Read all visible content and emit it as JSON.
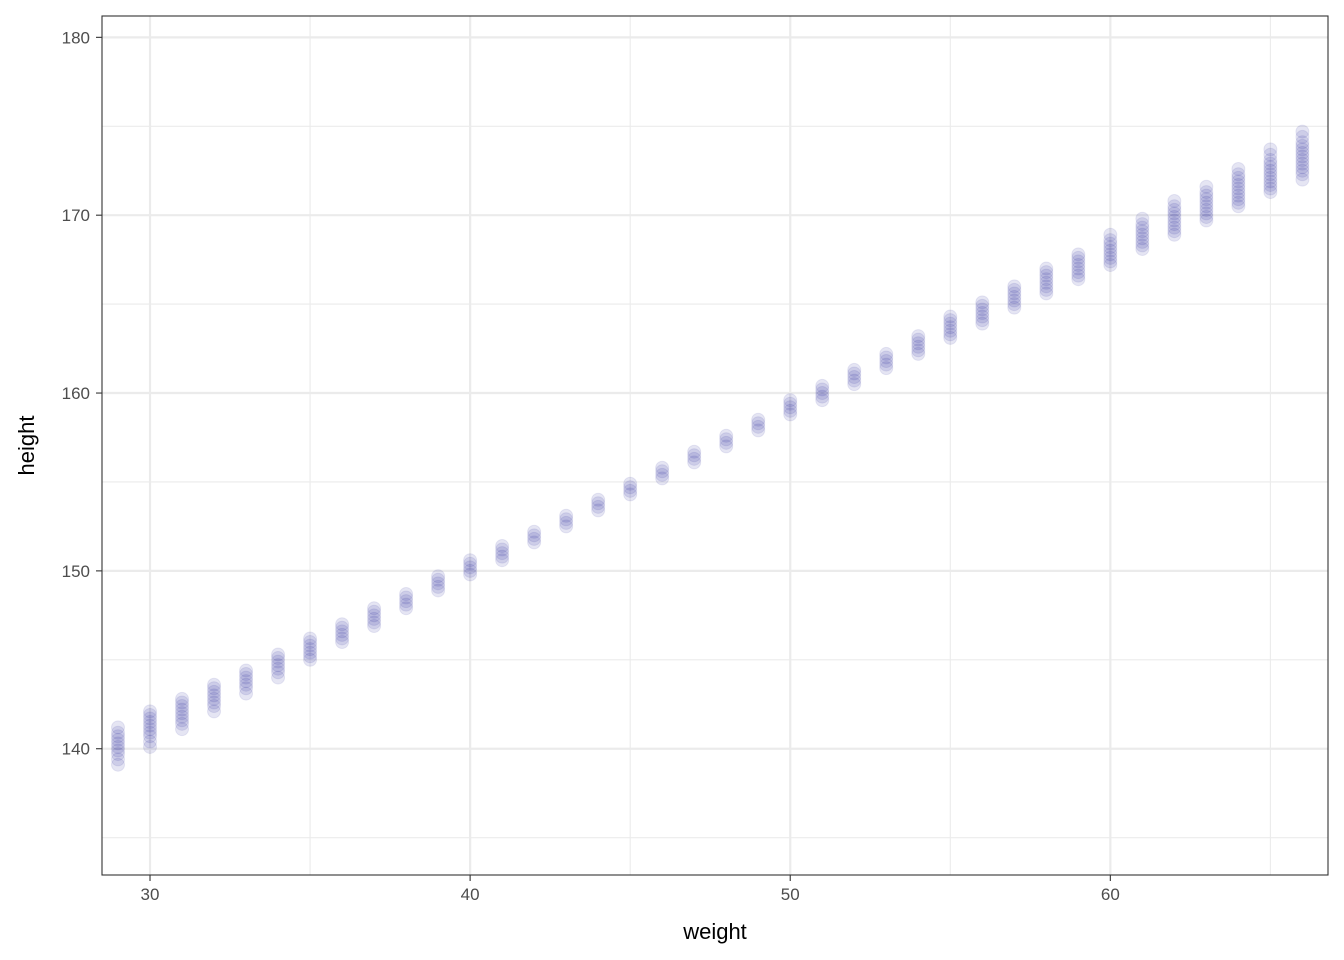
{
  "chart_data": {
    "type": "scatter",
    "title": "",
    "xlabel": "weight",
    "ylabel": "height",
    "xlim": [
      28.5,
      66.8
    ],
    "ylim": [
      132.9,
      181.2
    ],
    "x_ticks": [
      30,
      40,
      50,
      60
    ],
    "y_ticks": [
      140,
      150,
      160,
      170,
      180
    ],
    "x_ticks_minor": [
      35,
      45,
      55,
      65
    ],
    "y_ticks_minor": [
      135,
      145,
      155,
      165,
      175
    ],
    "grid": true,
    "point_color": "#00008B",
    "point_opacity": 0.1,
    "x_values": [
      29,
      30,
      31,
      32,
      33,
      34,
      35,
      36,
      37,
      38,
      39,
      40,
      41,
      42,
      43,
      44,
      45,
      46,
      47,
      48,
      49,
      50,
      51,
      52,
      53,
      54,
      55,
      56,
      57,
      58,
      59,
      60,
      61,
      62,
      63,
      64,
      65,
      66
    ],
    "point_clusters": [
      {
        "x": 29,
        "y": [
          139.1,
          139.4,
          139.7,
          139.9,
          140.1,
          140.3,
          140.5,
          140.7,
          140.9,
          141.2
        ]
      },
      {
        "x": 30,
        "y": [
          140.1,
          140.4,
          140.7,
          140.9,
          141.1,
          141.3,
          141.5,
          141.7,
          141.9,
          142.1
        ]
      },
      {
        "x": 31,
        "y": [
          141.1,
          141.4,
          141.6,
          141.8,
          142.0,
          142.2,
          142.4,
          142.6,
          142.8
        ]
      },
      {
        "x": 32,
        "y": [
          142.1,
          142.4,
          142.6,
          142.8,
          143.0,
          143.2,
          143.4,
          143.6
        ]
      },
      {
        "x": 33,
        "y": [
          143.1,
          143.4,
          143.6,
          143.8,
          144.0,
          144.2,
          144.4
        ]
      },
      {
        "x": 34,
        "y": [
          144.0,
          144.3,
          144.5,
          144.7,
          144.9,
          145.1,
          145.3
        ]
      },
      {
        "x": 35,
        "y": [
          145.0,
          145.2,
          145.4,
          145.6,
          145.8,
          146.0,
          146.2
        ]
      },
      {
        "x": 36,
        "y": [
          146.0,
          146.2,
          146.4,
          146.6,
          146.8,
          147.0
        ]
      },
      {
        "x": 37,
        "y": [
          146.9,
          147.1,
          147.3,
          147.5,
          147.7,
          147.9
        ]
      },
      {
        "x": 38,
        "y": [
          147.9,
          148.1,
          148.3,
          148.5,
          148.7
        ]
      },
      {
        "x": 39,
        "y": [
          148.9,
          149.1,
          149.3,
          149.5,
          149.7
        ]
      },
      {
        "x": 40,
        "y": [
          149.8,
          150.0,
          150.2,
          150.4,
          150.6
        ]
      },
      {
        "x": 41,
        "y": [
          150.6,
          150.8,
          151.0,
          151.2,
          151.4
        ]
      },
      {
        "x": 42,
        "y": [
          151.6,
          151.8,
          152.0,
          152.2
        ]
      },
      {
        "x": 43,
        "y": [
          152.5,
          152.7,
          152.9,
          153.1
        ]
      },
      {
        "x": 44,
        "y": [
          153.4,
          153.6,
          153.8,
          154.0
        ]
      },
      {
        "x": 45,
        "y": [
          154.3,
          154.5,
          154.7,
          154.9
        ]
      },
      {
        "x": 46,
        "y": [
          155.2,
          155.4,
          155.6,
          155.8
        ]
      },
      {
        "x": 47,
        "y": [
          156.1,
          156.3,
          156.5,
          156.7
        ]
      },
      {
        "x": 48,
        "y": [
          157.0,
          157.2,
          157.4,
          157.6
        ]
      },
      {
        "x": 49,
        "y": [
          157.9,
          158.1,
          158.3,
          158.5
        ]
      },
      {
        "x": 50,
        "y": [
          158.8,
          159.0,
          159.2,
          159.4,
          159.6
        ]
      },
      {
        "x": 51,
        "y": [
          159.6,
          159.8,
          160.0,
          160.2,
          160.4
        ]
      },
      {
        "x": 52,
        "y": [
          160.5,
          160.7,
          160.9,
          161.1,
          161.3
        ]
      },
      {
        "x": 53,
        "y": [
          161.4,
          161.6,
          161.8,
          162.0,
          162.2
        ]
      },
      {
        "x": 54,
        "y": [
          162.2,
          162.4,
          162.6,
          162.8,
          163.0,
          163.2
        ]
      },
      {
        "x": 55,
        "y": [
          163.1,
          163.3,
          163.5,
          163.7,
          163.9,
          164.1,
          164.3
        ]
      },
      {
        "x": 56,
        "y": [
          163.9,
          164.1,
          164.3,
          164.5,
          164.7,
          164.9,
          165.1
        ]
      },
      {
        "x": 57,
        "y": [
          164.8,
          165.0,
          165.2,
          165.4,
          165.6,
          165.8,
          166.0
        ]
      },
      {
        "x": 58,
        "y": [
          165.6,
          165.8,
          166.0,
          166.2,
          166.4,
          166.6,
          166.8,
          167.0
        ]
      },
      {
        "x": 59,
        "y": [
          166.4,
          166.6,
          166.8,
          167.0,
          167.2,
          167.4,
          167.6,
          167.8
        ]
      },
      {
        "x": 60,
        "y": [
          167.2,
          167.4,
          167.6,
          167.8,
          168.0,
          168.2,
          168.4,
          168.6,
          168.9
        ]
      },
      {
        "x": 61,
        "y": [
          168.1,
          168.3,
          168.5,
          168.7,
          168.9,
          169.1,
          169.3,
          169.5,
          169.8
        ]
      },
      {
        "x": 62,
        "y": [
          168.9,
          169.1,
          169.3,
          169.5,
          169.7,
          169.9,
          170.1,
          170.3,
          170.5,
          170.8
        ]
      },
      {
        "x": 63,
        "y": [
          169.7,
          169.9,
          170.1,
          170.3,
          170.5,
          170.7,
          170.9,
          171.1,
          171.3,
          171.6
        ]
      },
      {
        "x": 64,
        "y": [
          170.5,
          170.7,
          170.9,
          171.1,
          171.3,
          171.5,
          171.7,
          171.9,
          172.1,
          172.3,
          172.6
        ]
      },
      {
        "x": 65,
        "y": [
          171.3,
          171.5,
          171.7,
          171.9,
          172.1,
          172.3,
          172.5,
          172.7,
          172.9,
          173.1,
          173.4,
          173.7
        ]
      },
      {
        "x": 66,
        "y": [
          172.0,
          172.3,
          172.5,
          172.7,
          172.9,
          173.1,
          173.3,
          173.5,
          173.7,
          173.9,
          174.1,
          174.4,
          174.7
        ]
      }
    ]
  }
}
